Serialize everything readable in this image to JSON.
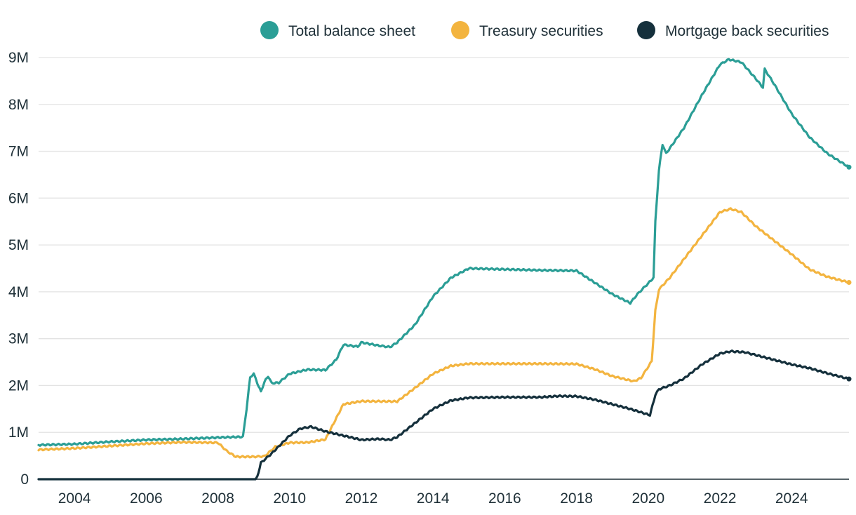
{
  "chart_data": {
    "type": "line",
    "title": "",
    "xlabel": "",
    "ylabel": "",
    "x_range": [
      2003.0,
      2025.6
    ],
    "xticks": [
      2004,
      2006,
      2008,
      2010,
      2012,
      2014,
      2016,
      2018,
      2020,
      2022,
      2024
    ],
    "xtick_labels": [
      "2004",
      "2006",
      "2008",
      "2010",
      "2012",
      "2014",
      "2016",
      "2018",
      "2020",
      "2022",
      "2024"
    ],
    "yticks": [
      0,
      1000000,
      2000000,
      3000000,
      4000000,
      5000000,
      6000000,
      7000000,
      8000000,
      9000000
    ],
    "ytick_labels": [
      "0",
      "1M",
      "2M",
      "3M",
      "4M",
      "5M",
      "6M",
      "7M",
      "8M",
      "9M"
    ],
    "ylim": [
      0,
      9000000
    ],
    "grid": true,
    "legend_position": "top-right",
    "series": [
      {
        "name": "Total balance sheet",
        "color": "#2b9e96",
        "points": [
          [
            2003.0,
            730000
          ],
          [
            2004.0,
            750000
          ],
          [
            2005.0,
            800000
          ],
          [
            2006.0,
            840000
          ],
          [
            2007.0,
            860000
          ],
          [
            2008.0,
            890000
          ],
          [
            2008.7,
            905000
          ],
          [
            2008.8,
            1500000
          ],
          [
            2008.9,
            2180000
          ],
          [
            2009.0,
            2250000
          ],
          [
            2009.1,
            2050000
          ],
          [
            2009.2,
            1870000
          ],
          [
            2009.3,
            2080000
          ],
          [
            2009.4,
            2200000
          ],
          [
            2009.5,
            2050000
          ],
          [
            2009.7,
            2060000
          ],
          [
            2010.0,
            2250000
          ],
          [
            2010.5,
            2340000
          ],
          [
            2011.0,
            2330000
          ],
          [
            2011.3,
            2550000
          ],
          [
            2011.5,
            2870000
          ],
          [
            2011.9,
            2830000
          ],
          [
            2012.0,
            2920000
          ],
          [
            2012.5,
            2850000
          ],
          [
            2012.8,
            2820000
          ],
          [
            2013.0,
            2920000
          ],
          [
            2013.5,
            3300000
          ],
          [
            2014.0,
            3900000
          ],
          [
            2014.5,
            4300000
          ],
          [
            2015.0,
            4500000
          ],
          [
            2016.0,
            4480000
          ],
          [
            2017.0,
            4460000
          ],
          [
            2018.0,
            4450000
          ],
          [
            2018.5,
            4200000
          ],
          [
            2019.0,
            3950000
          ],
          [
            2019.5,
            3760000
          ],
          [
            2019.7,
            3950000
          ],
          [
            2020.0,
            4180000
          ],
          [
            2020.15,
            4300000
          ],
          [
            2020.2,
            5500000
          ],
          [
            2020.3,
            6600000
          ],
          [
            2020.4,
            7150000
          ],
          [
            2020.5,
            6950000
          ],
          [
            2021.0,
            7500000
          ],
          [
            2021.5,
            8200000
          ],
          [
            2022.0,
            8850000
          ],
          [
            2022.25,
            8960000
          ],
          [
            2022.6,
            8900000
          ],
          [
            2023.0,
            8550000
          ],
          [
            2023.2,
            8360000
          ],
          [
            2023.25,
            8750000
          ],
          [
            2023.5,
            8450000
          ],
          [
            2024.0,
            7800000
          ],
          [
            2024.5,
            7300000
          ],
          [
            2025.0,
            6950000
          ],
          [
            2025.6,
            6660000
          ]
        ]
      },
      {
        "name": "Treasury securities",
        "color": "#f3b43f",
        "points": [
          [
            2003.0,
            630000
          ],
          [
            2004.0,
            660000
          ],
          [
            2005.0,
            710000
          ],
          [
            2006.0,
            760000
          ],
          [
            2007.0,
            790000
          ],
          [
            2008.0,
            780000
          ],
          [
            2008.25,
            600000
          ],
          [
            2008.5,
            480000
          ],
          [
            2009.0,
            480000
          ],
          [
            2009.3,
            490000
          ],
          [
            2009.6,
            690000
          ],
          [
            2010.0,
            780000
          ],
          [
            2010.5,
            785000
          ],
          [
            2011.0,
            850000
          ],
          [
            2011.5,
            1600000
          ],
          [
            2012.0,
            1665000
          ],
          [
            2013.0,
            1660000
          ],
          [
            2013.5,
            1950000
          ],
          [
            2014.0,
            2250000
          ],
          [
            2014.5,
            2420000
          ],
          [
            2015.0,
            2465000
          ],
          [
            2016.0,
            2465000
          ],
          [
            2017.0,
            2465000
          ],
          [
            2018.0,
            2460000
          ],
          [
            2018.5,
            2350000
          ],
          [
            2019.0,
            2200000
          ],
          [
            2019.6,
            2090000
          ],
          [
            2019.8,
            2160000
          ],
          [
            2020.1,
            2520000
          ],
          [
            2020.2,
            3600000
          ],
          [
            2020.3,
            4050000
          ],
          [
            2020.6,
            4300000
          ],
          [
            2021.0,
            4700000
          ],
          [
            2021.5,
            5200000
          ],
          [
            2022.0,
            5700000
          ],
          [
            2022.3,
            5770000
          ],
          [
            2022.6,
            5700000
          ],
          [
            2023.0,
            5400000
          ],
          [
            2023.5,
            5100000
          ],
          [
            2024.0,
            4800000
          ],
          [
            2024.5,
            4480000
          ],
          [
            2025.0,
            4320000
          ],
          [
            2025.6,
            4200000
          ]
        ]
      },
      {
        "name": "Mortgage back securities",
        "color": "#15303c",
        "points": [
          [
            2003.0,
            0
          ],
          [
            2005.0,
            0
          ],
          [
            2007.0,
            0
          ],
          [
            2008.0,
            0
          ],
          [
            2009.05,
            0
          ],
          [
            2009.1,
            50000
          ],
          [
            2009.2,
            350000
          ],
          [
            2009.5,
            550000
          ],
          [
            2010.0,
            930000
          ],
          [
            2010.3,
            1080000
          ],
          [
            2010.6,
            1120000
          ],
          [
            2011.0,
            1020000
          ],
          [
            2011.5,
            930000
          ],
          [
            2012.0,
            840000
          ],
          [
            2012.5,
            860000
          ],
          [
            2012.8,
            840000
          ],
          [
            2013.0,
            900000
          ],
          [
            2013.5,
            1200000
          ],
          [
            2014.0,
            1500000
          ],
          [
            2014.5,
            1680000
          ],
          [
            2015.0,
            1740000
          ],
          [
            2016.0,
            1750000
          ],
          [
            2017.0,
            1750000
          ],
          [
            2017.5,
            1775000
          ],
          [
            2018.0,
            1770000
          ],
          [
            2018.5,
            1700000
          ],
          [
            2019.0,
            1600000
          ],
          [
            2019.5,
            1500000
          ],
          [
            2020.0,
            1380000
          ],
          [
            2020.05,
            1370000
          ],
          [
            2020.2,
            1800000
          ],
          [
            2020.3,
            1920000
          ],
          [
            2020.6,
            2000000
          ],
          [
            2021.0,
            2150000
          ],
          [
            2021.5,
            2450000
          ],
          [
            2022.0,
            2680000
          ],
          [
            2022.3,
            2730000
          ],
          [
            2022.7,
            2710000
          ],
          [
            2023.0,
            2650000
          ],
          [
            2023.5,
            2550000
          ],
          [
            2024.0,
            2450000
          ],
          [
            2024.5,
            2370000
          ],
          [
            2025.0,
            2260000
          ],
          [
            2025.6,
            2140000
          ]
        ]
      }
    ]
  }
}
